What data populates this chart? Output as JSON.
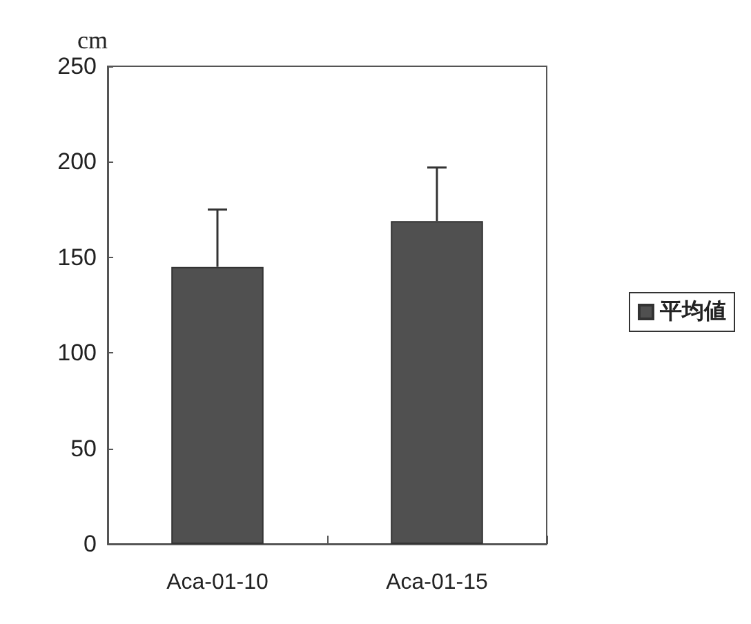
{
  "chart_data": {
    "type": "bar",
    "ylabel": "cm",
    "categories": [
      "Aca-01-10",
      "Aca-01-15"
    ],
    "series": [
      {
        "name": "平均値",
        "color": "#505050",
        "values": [
          145,
          169
        ],
        "errors": [
          [
            145,
            175
          ],
          [
            169,
            197
          ]
        ]
      }
    ],
    "ylim": [
      0,
      250
    ],
    "yticks": [
      0,
      50,
      100,
      150,
      200,
      250
    ],
    "grid": false,
    "legend": "right"
  }
}
